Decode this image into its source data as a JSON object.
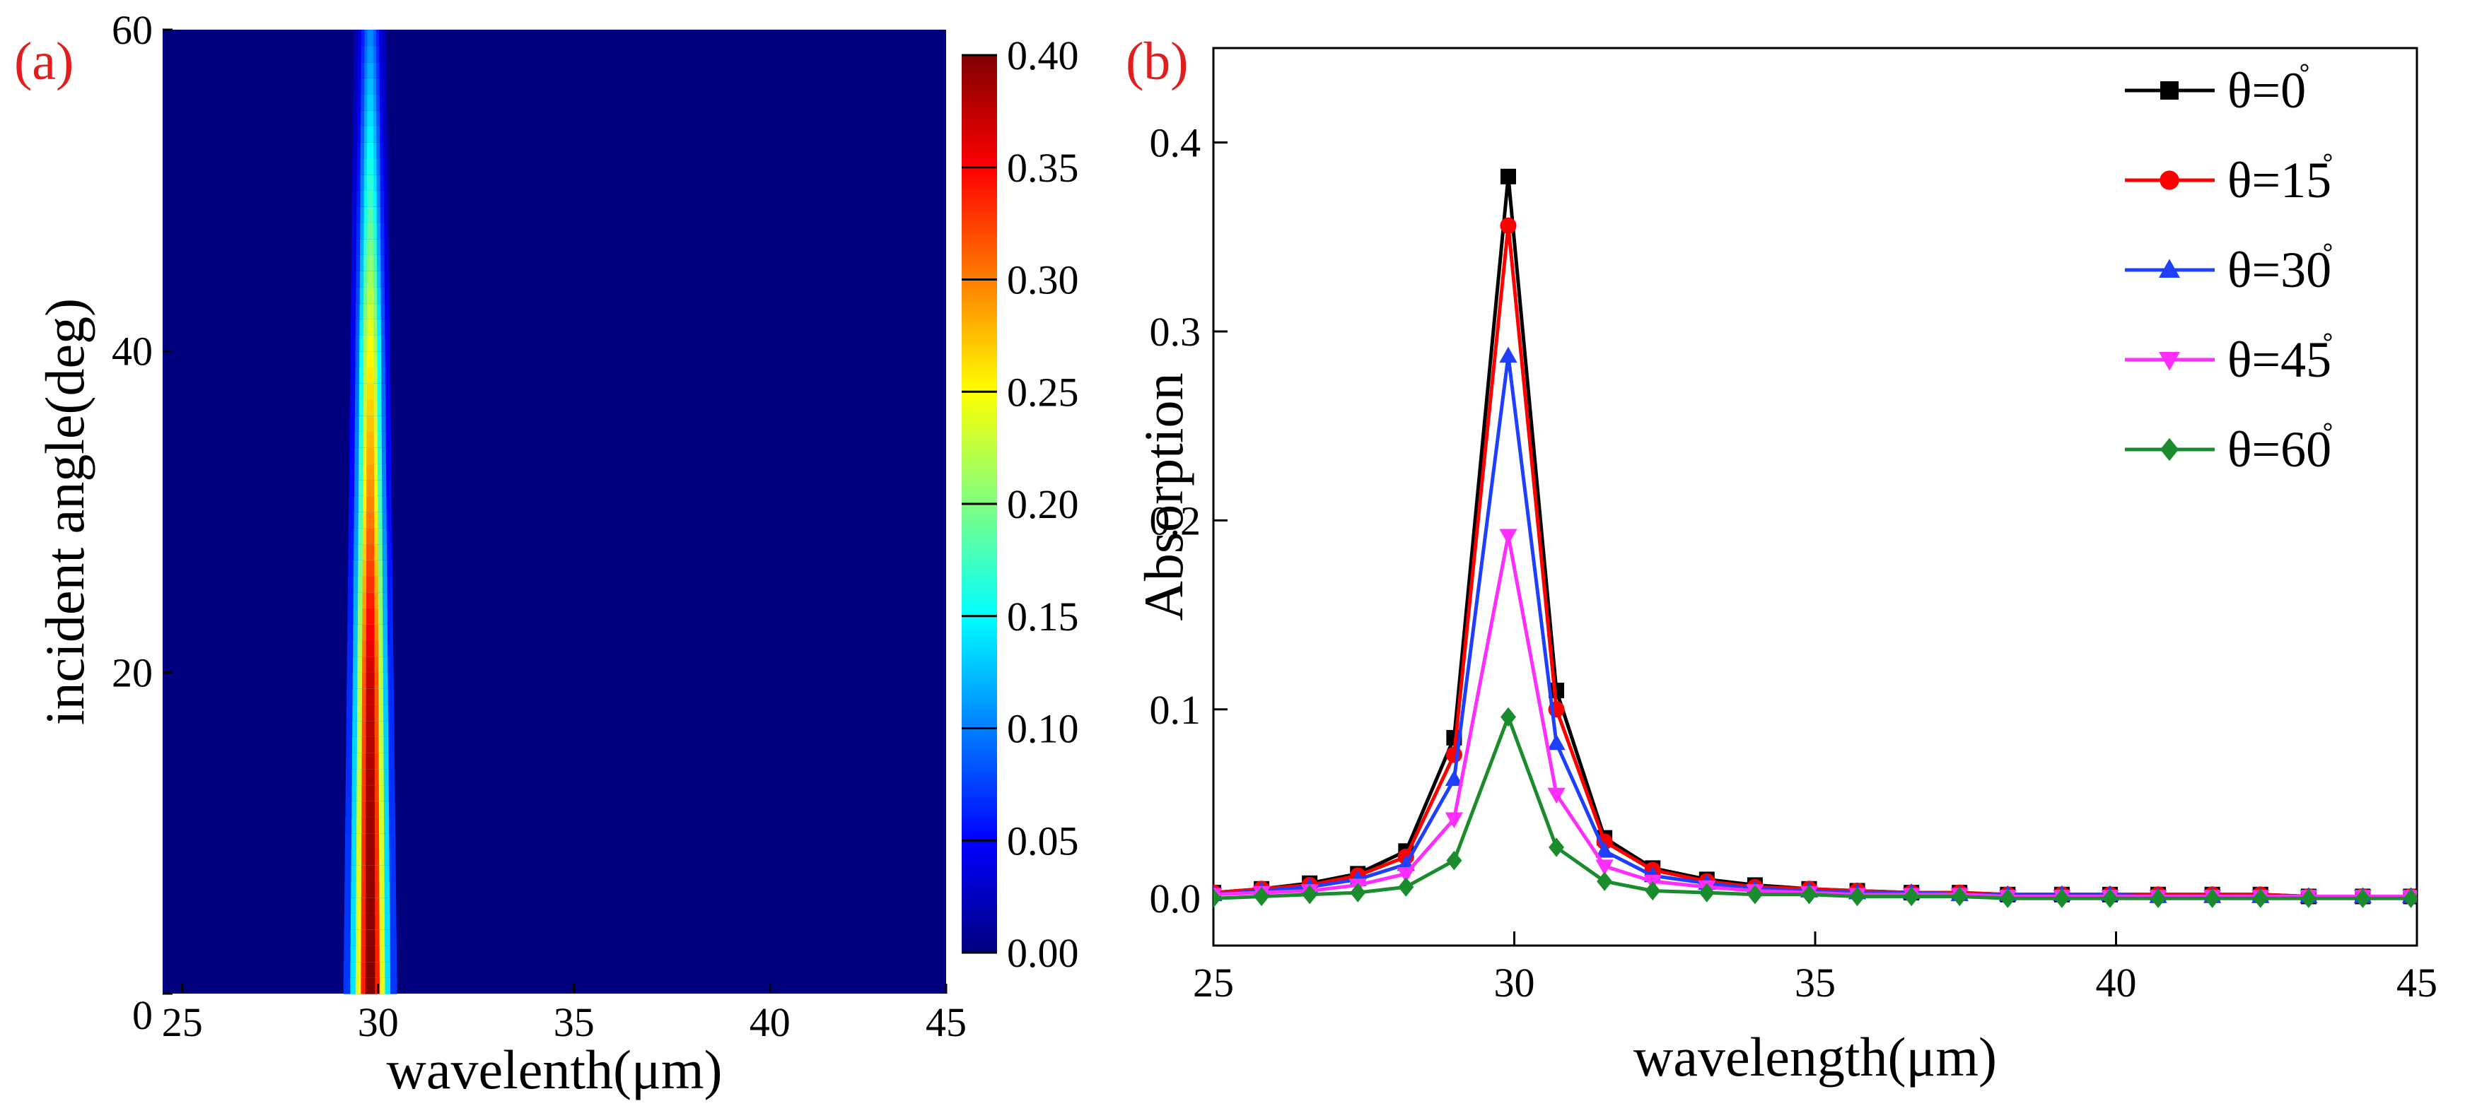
{
  "figure": {
    "panel_a_label": "(a)",
    "panel_b_label": "(b)"
  },
  "chart_data": [
    {
      "type": "heatmap",
      "panel": "(a)",
      "xlabel": "wavelenth(μm)",
      "ylabel": "incident angle(deg)",
      "xlim": [
        24.5,
        44.5
      ],
      "ylim": [
        0,
        60
      ],
      "x_tick_labels": [
        "25",
        "30",
        "35",
        "40",
        "45"
      ],
      "x_tick_values": [
        25,
        30,
        35,
        40,
        44.5
      ],
      "y_tick_labels": [
        "0",
        "20",
        "40",
        "60"
      ],
      "y_tick_values": [
        0,
        20,
        40,
        60
      ],
      "peak_wavelength": 29.8,
      "peak_absorption_vs_angle": [
        {
          "angle": 0,
          "value": 0.4
        },
        {
          "angle": 10,
          "value": 0.39
        },
        {
          "angle": 20,
          "value": 0.37
        },
        {
          "angle": 30,
          "value": 0.3
        },
        {
          "angle": 40,
          "value": 0.25
        },
        {
          "angle": 50,
          "value": 0.17
        },
        {
          "angle": 60,
          "value": 0.1
        }
      ],
      "colorbar": {
        "min": 0.0,
        "max": 0.4,
        "tick_labels": [
          "0.00",
          "0.05",
          "0.10",
          "0.15",
          "0.20",
          "0.25",
          "0.30",
          "0.35",
          "0.40"
        ],
        "tick_values": [
          0,
          0.05,
          0.1,
          0.15,
          0.2,
          0.25,
          0.3,
          0.35,
          0.4
        ],
        "colormap": "jet",
        "colors": [
          "#00007f",
          "#0000ff",
          "#007fff",
          "#00ffff",
          "#7fff7f",
          "#ffff00",
          "#ff7f00",
          "#ff0000",
          "#7f0000"
        ]
      }
    },
    {
      "type": "line",
      "panel": "(b)",
      "xlabel": "wavelength(μm)",
      "ylabel": "Absorption",
      "xlim": [
        25,
        45
      ],
      "ylim": [
        -0.025,
        0.45
      ],
      "x_tick_labels": [
        "25",
        "30",
        "35",
        "40",
        "45"
      ],
      "x_tick_values": [
        25,
        30,
        35,
        40,
        45
      ],
      "y_tick_labels": [
        "0.0",
        "0.1",
        "0.2",
        "0.3",
        "0.4"
      ],
      "y_tick_values": [
        0.0,
        0.1,
        0.2,
        0.3,
        0.4
      ],
      "legend_position": "top-right",
      "x": [
        25.0,
        25.8,
        26.6,
        27.4,
        28.2,
        29.0,
        29.9,
        30.7,
        31.5,
        32.3,
        33.2,
        34.0,
        34.9,
        35.7,
        36.6,
        37.4,
        38.2,
        39.1,
        39.9,
        40.7,
        41.6,
        42.4,
        43.2,
        44.1,
        44.9
      ],
      "series": [
        {
          "name": "θ=0°",
          "label": "θ=0",
          "color": "#000000",
          "marker": "square",
          "values": [
            0.003,
            0.005,
            0.008,
            0.013,
            0.025,
            0.085,
            0.382,
            0.11,
            0.032,
            0.016,
            0.01,
            0.007,
            0.005,
            0.004,
            0.003,
            0.003,
            0.002,
            0.002,
            0.002,
            0.002,
            0.002,
            0.002,
            0.001,
            0.001,
            0.001
          ]
        },
        {
          "name": "θ=15°",
          "label": "θ=15",
          "color": "#ff0000",
          "marker": "circle",
          "values": [
            0.003,
            0.005,
            0.007,
            0.012,
            0.022,
            0.076,
            0.356,
            0.1,
            0.03,
            0.015,
            0.009,
            0.006,
            0.005,
            0.004,
            0.003,
            0.003,
            0.002,
            0.002,
            0.002,
            0.002,
            0.002,
            0.002,
            0.001,
            0.001,
            0.001
          ]
        },
        {
          "name": "θ=30°",
          "label": "θ=30",
          "color": "#1f3fff",
          "marker": "triangle-up",
          "values": [
            0.002,
            0.004,
            0.006,
            0.01,
            0.018,
            0.063,
            0.287,
            0.082,
            0.025,
            0.012,
            0.008,
            0.005,
            0.004,
            0.003,
            0.003,
            0.002,
            0.002,
            0.002,
            0.002,
            0.001,
            0.001,
            0.001,
            0.001,
            0.001,
            0.001
          ]
        },
        {
          "name": "θ=45°",
          "label": "θ=45",
          "color": "#ff2eff",
          "marker": "triangle-down",
          "values": [
            0.002,
            0.003,
            0.004,
            0.007,
            0.013,
            0.042,
            0.192,
            0.055,
            0.017,
            0.009,
            0.006,
            0.004,
            0.003,
            0.002,
            0.002,
            0.002,
            0.001,
            0.001,
            0.001,
            0.001,
            0.001,
            0.001,
            0.001,
            0.001,
            0.001
          ]
        },
        {
          "name": "θ=60°",
          "label": "θ=60",
          "color": "#1a8c2e",
          "marker": "diamond",
          "values": [
            0.0,
            0.001,
            0.002,
            0.003,
            0.006,
            0.02,
            0.096,
            0.027,
            0.009,
            0.004,
            0.003,
            0.002,
            0.002,
            0.001,
            0.001,
            0.001,
            0.0,
            0.0,
            0.0,
            0.0,
            0.0,
            0.0,
            0.0,
            0.0,
            0.0
          ]
        }
      ]
    }
  ]
}
